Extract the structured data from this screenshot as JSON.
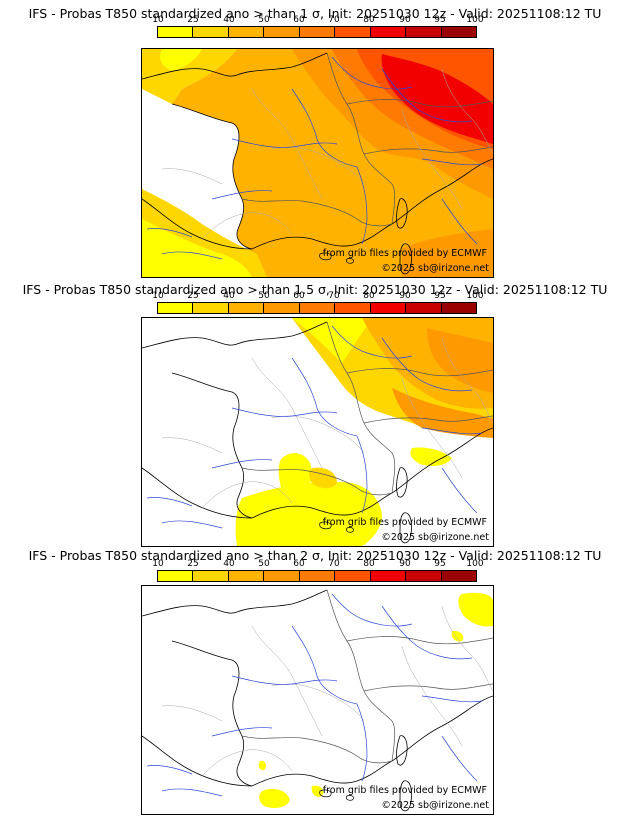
{
  "legend": {
    "levels": [
      "10",
      "25",
      "40",
      "50",
      "60",
      "70",
      "80",
      "90",
      "95",
      "100"
    ],
    "colors": [
      "#ffff00",
      "#ffd700",
      "#ffb300",
      "#ff9900",
      "#ff7a00",
      "#ff5500",
      "#f20000",
      "#c80000",
      "#9a0000",
      "#5a0000"
    ]
  },
  "panels": [
    {
      "title": "IFS - Probas T850  standardized ano > than 1 σ, Init: 20251030 12z - Valid: 20251108:12 TU",
      "source_credit": "from grib files provided by ECMWF",
      "copyright": "©2025 sb@irizone.net"
    },
    {
      "title": "IFS - Probas T850  standardized ano > than 1.5 σ, Init: 20251030 12z - Valid: 20251108:12 TU",
      "source_credit": "from grib files provided by ECMWF",
      "copyright": "©2025 sb@irizone.net"
    },
    {
      "title": "IFS - Probas T850  standardized ano > than 2 σ, Init: 20251030 12z - Valid: 20251108:12 TU",
      "source_credit": "from grib files provided by ECMWF",
      "copyright": "©2025 sb@irizone.net"
    }
  ]
}
